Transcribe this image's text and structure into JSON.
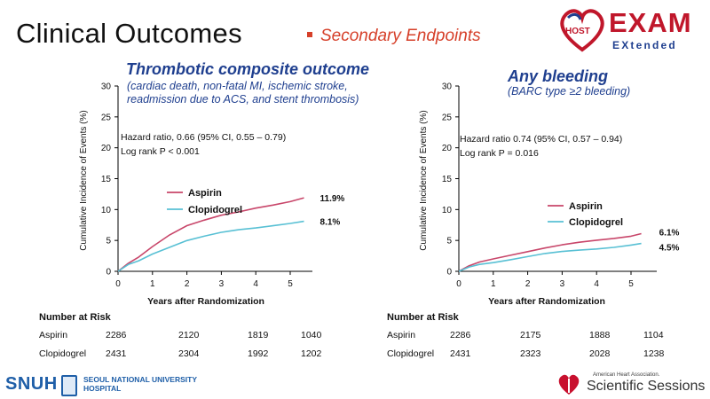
{
  "header": {
    "title": "Clinical Outcomes",
    "subtitle": "Secondary Endpoints"
  },
  "logo": {
    "host": "HOST",
    "exam": "EXAM",
    "extended": "EXtended"
  },
  "colors": {
    "aspirin": "#c8466a",
    "clopidogrel": "#58c0d4",
    "title_blue": "#1f3f8f",
    "accent_red": "#d6402a"
  },
  "panels": [
    {
      "title": "Thrombotic composite outcome",
      "subtitle": [
        "(cardiac death, non-fatal MI, ischemic stroke,",
        "readmission due to ACS, and stent thrombosis)"
      ],
      "hr_line1": "Hazard ratio, 0.66 (95% CI, 0.55 – 0.79)",
      "hr_line2": "Log rank P < 0.001"
    },
    {
      "title": "Any bleeding",
      "subtitle": [
        "(BARC type ≥2 bleeding)"
      ],
      "hr_line1": "Hazard ratio 0.74 (95% CI, 0.57 – 0.94)",
      "hr_line2": "Log rank P = 0.016"
    }
  ],
  "chart_data": [
    {
      "type": "line",
      "title": "Thrombotic composite outcome",
      "xlabel": "Years after Randomization",
      "ylabel": "Cumulative Incidence of Events (%)",
      "xlim": [
        0,
        5.6
      ],
      "ylim": [
        0,
        30
      ],
      "xticks": [
        0,
        1,
        2,
        3,
        4,
        5
      ],
      "yticks": [
        0,
        5,
        10,
        15,
        20,
        25,
        30
      ],
      "legend": "center-right",
      "series": [
        {
          "name": "Aspirin",
          "color": "#c8466a",
          "end_label": "11.9%",
          "x": [
            0,
            0.3,
            0.6,
            1.0,
            1.5,
            2.0,
            2.5,
            3.0,
            3.5,
            4.0,
            4.5,
            5.0,
            5.4
          ],
          "y": [
            0,
            1.2,
            2.2,
            4.0,
            6.0,
            7.5,
            8.3,
            9.0,
            9.5,
            10.2,
            10.8,
            11.4,
            11.9
          ]
        },
        {
          "name": "Clopidogrel",
          "color": "#58c0d4",
          "end_label": "8.1%",
          "x": [
            0,
            0.3,
            0.6,
            1.0,
            1.5,
            2.0,
            2.5,
            3.0,
            3.5,
            4.0,
            4.5,
            5.0,
            5.4
          ],
          "y": [
            0,
            1.0,
            1.7,
            2.9,
            4.0,
            5.0,
            5.6,
            6.2,
            6.7,
            7.1,
            7.5,
            7.8,
            8.1
          ]
        }
      ]
    },
    {
      "type": "line",
      "title": "Any bleeding",
      "xlabel": "Years after Randomization",
      "ylabel": "Cumulative Incidence of Events (%)",
      "xlim": [
        0,
        5.6
      ],
      "ylim": [
        0,
        30
      ],
      "xticks": [
        0,
        1,
        2,
        3,
        4,
        5
      ],
      "yticks": [
        0,
        5,
        10,
        15,
        20,
        25,
        30
      ],
      "legend": "center-right",
      "series": [
        {
          "name": "Aspirin",
          "color": "#c8466a",
          "end_label": "6.1%",
          "x": [
            0,
            0.3,
            0.6,
            1.0,
            1.5,
            2.0,
            2.5,
            3.0,
            3.5,
            4.0,
            4.5,
            5.0,
            5.3
          ],
          "y": [
            0,
            0.8,
            1.4,
            2.0,
            2.7,
            3.3,
            3.8,
            4.2,
            4.6,
            5.0,
            5.4,
            5.8,
            6.1
          ]
        },
        {
          "name": "Clopidogrel",
          "color": "#58c0d4",
          "end_label": "4.5%",
          "x": [
            0,
            0.3,
            0.6,
            1.0,
            1.5,
            2.0,
            2.5,
            3.0,
            3.5,
            4.0,
            4.5,
            5.0,
            5.3
          ],
          "y": [
            0,
            0.6,
            1.1,
            1.5,
            2.0,
            2.4,
            2.8,
            3.1,
            3.4,
            3.7,
            4.0,
            4.3,
            4.5
          ]
        }
      ]
    }
  ],
  "risk_table": {
    "title": "Number at Risk",
    "rows": [
      {
        "label": "Aspirin",
        "left": [
          "2286",
          "2120",
          "1819",
          "1040"
        ],
        "right": [
          "2286",
          "2175",
          "1888",
          "1104"
        ]
      },
      {
        "label": "Clopidogrel",
        "left": [
          "2431",
          "2304",
          "1992",
          "1202"
        ],
        "right": [
          "2431",
          "2323",
          "2028",
          "1238"
        ]
      }
    ]
  },
  "footer": {
    "snuh": "SNUH",
    "snuh_name": [
      "SEOUL NATIONAL UNIVERSITY",
      "HOSPITAL"
    ],
    "aha_small": "American Heart Association.",
    "aha_main": "Scientific Sessions"
  }
}
